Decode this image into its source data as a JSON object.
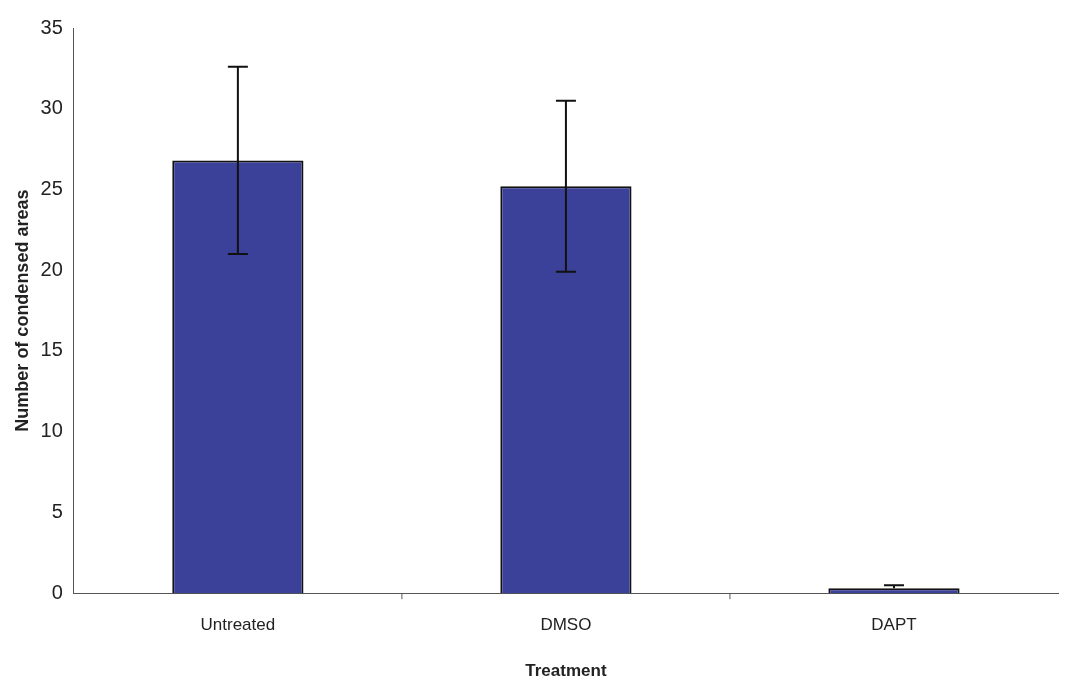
{
  "chart_data": {
    "type": "bar",
    "xlabel": "Treatment",
    "ylabel": "Number of condensed areas",
    "categories": [
      "Untreated",
      "DMSO",
      "DAPT"
    ],
    "series": [
      {
        "color": "#3b4199",
        "values": [
          26.8,
          25.2,
          0.3
        ],
        "errors": [
          5.8,
          5.3,
          [
            0.3,
            0.5
          ]
        ]
      }
    ],
    "ylim": [
      0,
      35
    ],
    "yticks": [
      0,
      5,
      10,
      15,
      20,
      25,
      30,
      35
    ],
    "grid": false,
    "legend": false
  }
}
